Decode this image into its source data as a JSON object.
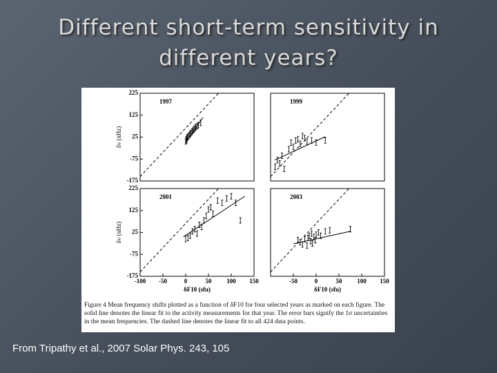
{
  "title_line1": "Different short-term sensitivity in",
  "title_line2": "different years?",
  "figure_caption": "Figure 4  Mean frequency shifts plotted as a function of δF10 for four selected years as marked on each figure. The solid line denotes the linear fit to the activity measurements for that year. The error bars signify the 1σ uncertainties in the mean frequencies. The dashed line denotes the linear fit to all 424 data points.",
  "source": "From Tripathy et al., 2007 Solar Phys. 243, 105",
  "chart_data": [
    {
      "type": "scatter",
      "label": "1997",
      "ylabel": "δν (nHz)",
      "xlim": [
        -100,
        150
      ],
      "ylim": [
        -175,
        225
      ],
      "yticks": [
        225,
        125,
        25,
        -75,
        -175
      ],
      "x": [
        0,
        1,
        2,
        3,
        4,
        6,
        8,
        10,
        12,
        14,
        16,
        18,
        20,
        22,
        25,
        28,
        33
      ],
      "y": [
        5,
        15,
        10,
        20,
        25,
        30,
        35,
        40,
        45,
        50,
        55,
        60,
        65,
        70,
        75,
        80,
        90
      ],
      "fit": {
        "x": [
          0,
          38
        ],
        "y": [
          0,
          115
        ]
      },
      "all_fit": {
        "x": [
          -100,
          72
        ],
        "y": [
          -155,
          225
        ]
      }
    },
    {
      "type": "scatter",
      "label": "1999",
      "xlim": [
        -100,
        150
      ],
      "ylim": [
        -175,
        225
      ],
      "x": [
        -90,
        -85,
        -80,
        -75,
        -70,
        -60,
        -55,
        -50,
        -45,
        -40,
        -35,
        -30,
        -25,
        -20,
        -10,
        0,
        20
      ],
      "y": [
        -110,
        -80,
        -95,
        -60,
        -120,
        -30,
        0,
        -20,
        10,
        15,
        -5,
        30,
        20,
        5,
        10,
        0,
        10
      ],
      "fit": {
        "x": [
          -91,
          20
        ],
        "y": [
          -80,
          27
        ]
      },
      "all_fit": {
        "x": [
          -100,
          72
        ],
        "y": [
          -155,
          225
        ]
      }
    },
    {
      "type": "scatter",
      "label": "2001",
      "ylabel": "δν (nHz)",
      "xlabel": "δF10 (sfu)",
      "xlim": [
        -100,
        150
      ],
      "ylim": [
        -175,
        225
      ],
      "yticks": [
        225,
        125,
        25,
        -75,
        -175
      ],
      "xticks": [
        -100,
        -50,
        0,
        50,
        100,
        150
      ],
      "x": [
        0,
        5,
        10,
        15,
        20,
        25,
        30,
        35,
        40,
        45,
        50,
        55,
        60,
        70,
        80,
        90,
        100,
        110,
        120
      ],
      "y": [
        -5,
        0,
        10,
        30,
        40,
        20,
        60,
        50,
        80,
        100,
        130,
        140,
        110,
        170,
        160,
        180,
        190,
        160,
        80
      ],
      "fit": {
        "x": [
          -5,
          130
        ],
        "y": [
          5,
          190
        ]
      },
      "all_fit": {
        "x": [
          -100,
          72
        ],
        "y": [
          -155,
          225
        ]
      }
    },
    {
      "type": "scatter",
      "label": "2003",
      "xlabel": "δF10 (sfu)",
      "xlim": [
        -100,
        150
      ],
      "ylim": [
        -175,
        225
      ],
      "xticks": [
        -50,
        0,
        50,
        100,
        150
      ],
      "x": [
        -40,
        -35,
        -30,
        -25,
        -20,
        -18,
        -15,
        -12,
        -10,
        -8,
        -5,
        -2,
        0,
        5,
        10,
        20,
        30,
        75
      ],
      "y": [
        -10,
        -20,
        -30,
        -5,
        -35,
        0,
        10,
        -15,
        20,
        -25,
        5,
        -10,
        15,
        25,
        10,
        30,
        35,
        40
      ],
      "fit": {
        "x": [
          -50,
          75
        ],
        "y": [
          -27,
          30
        ]
      },
      "all_fit": {
        "x": [
          -100,
          72
        ],
        "y": [
          -155,
          225
        ]
      }
    }
  ]
}
